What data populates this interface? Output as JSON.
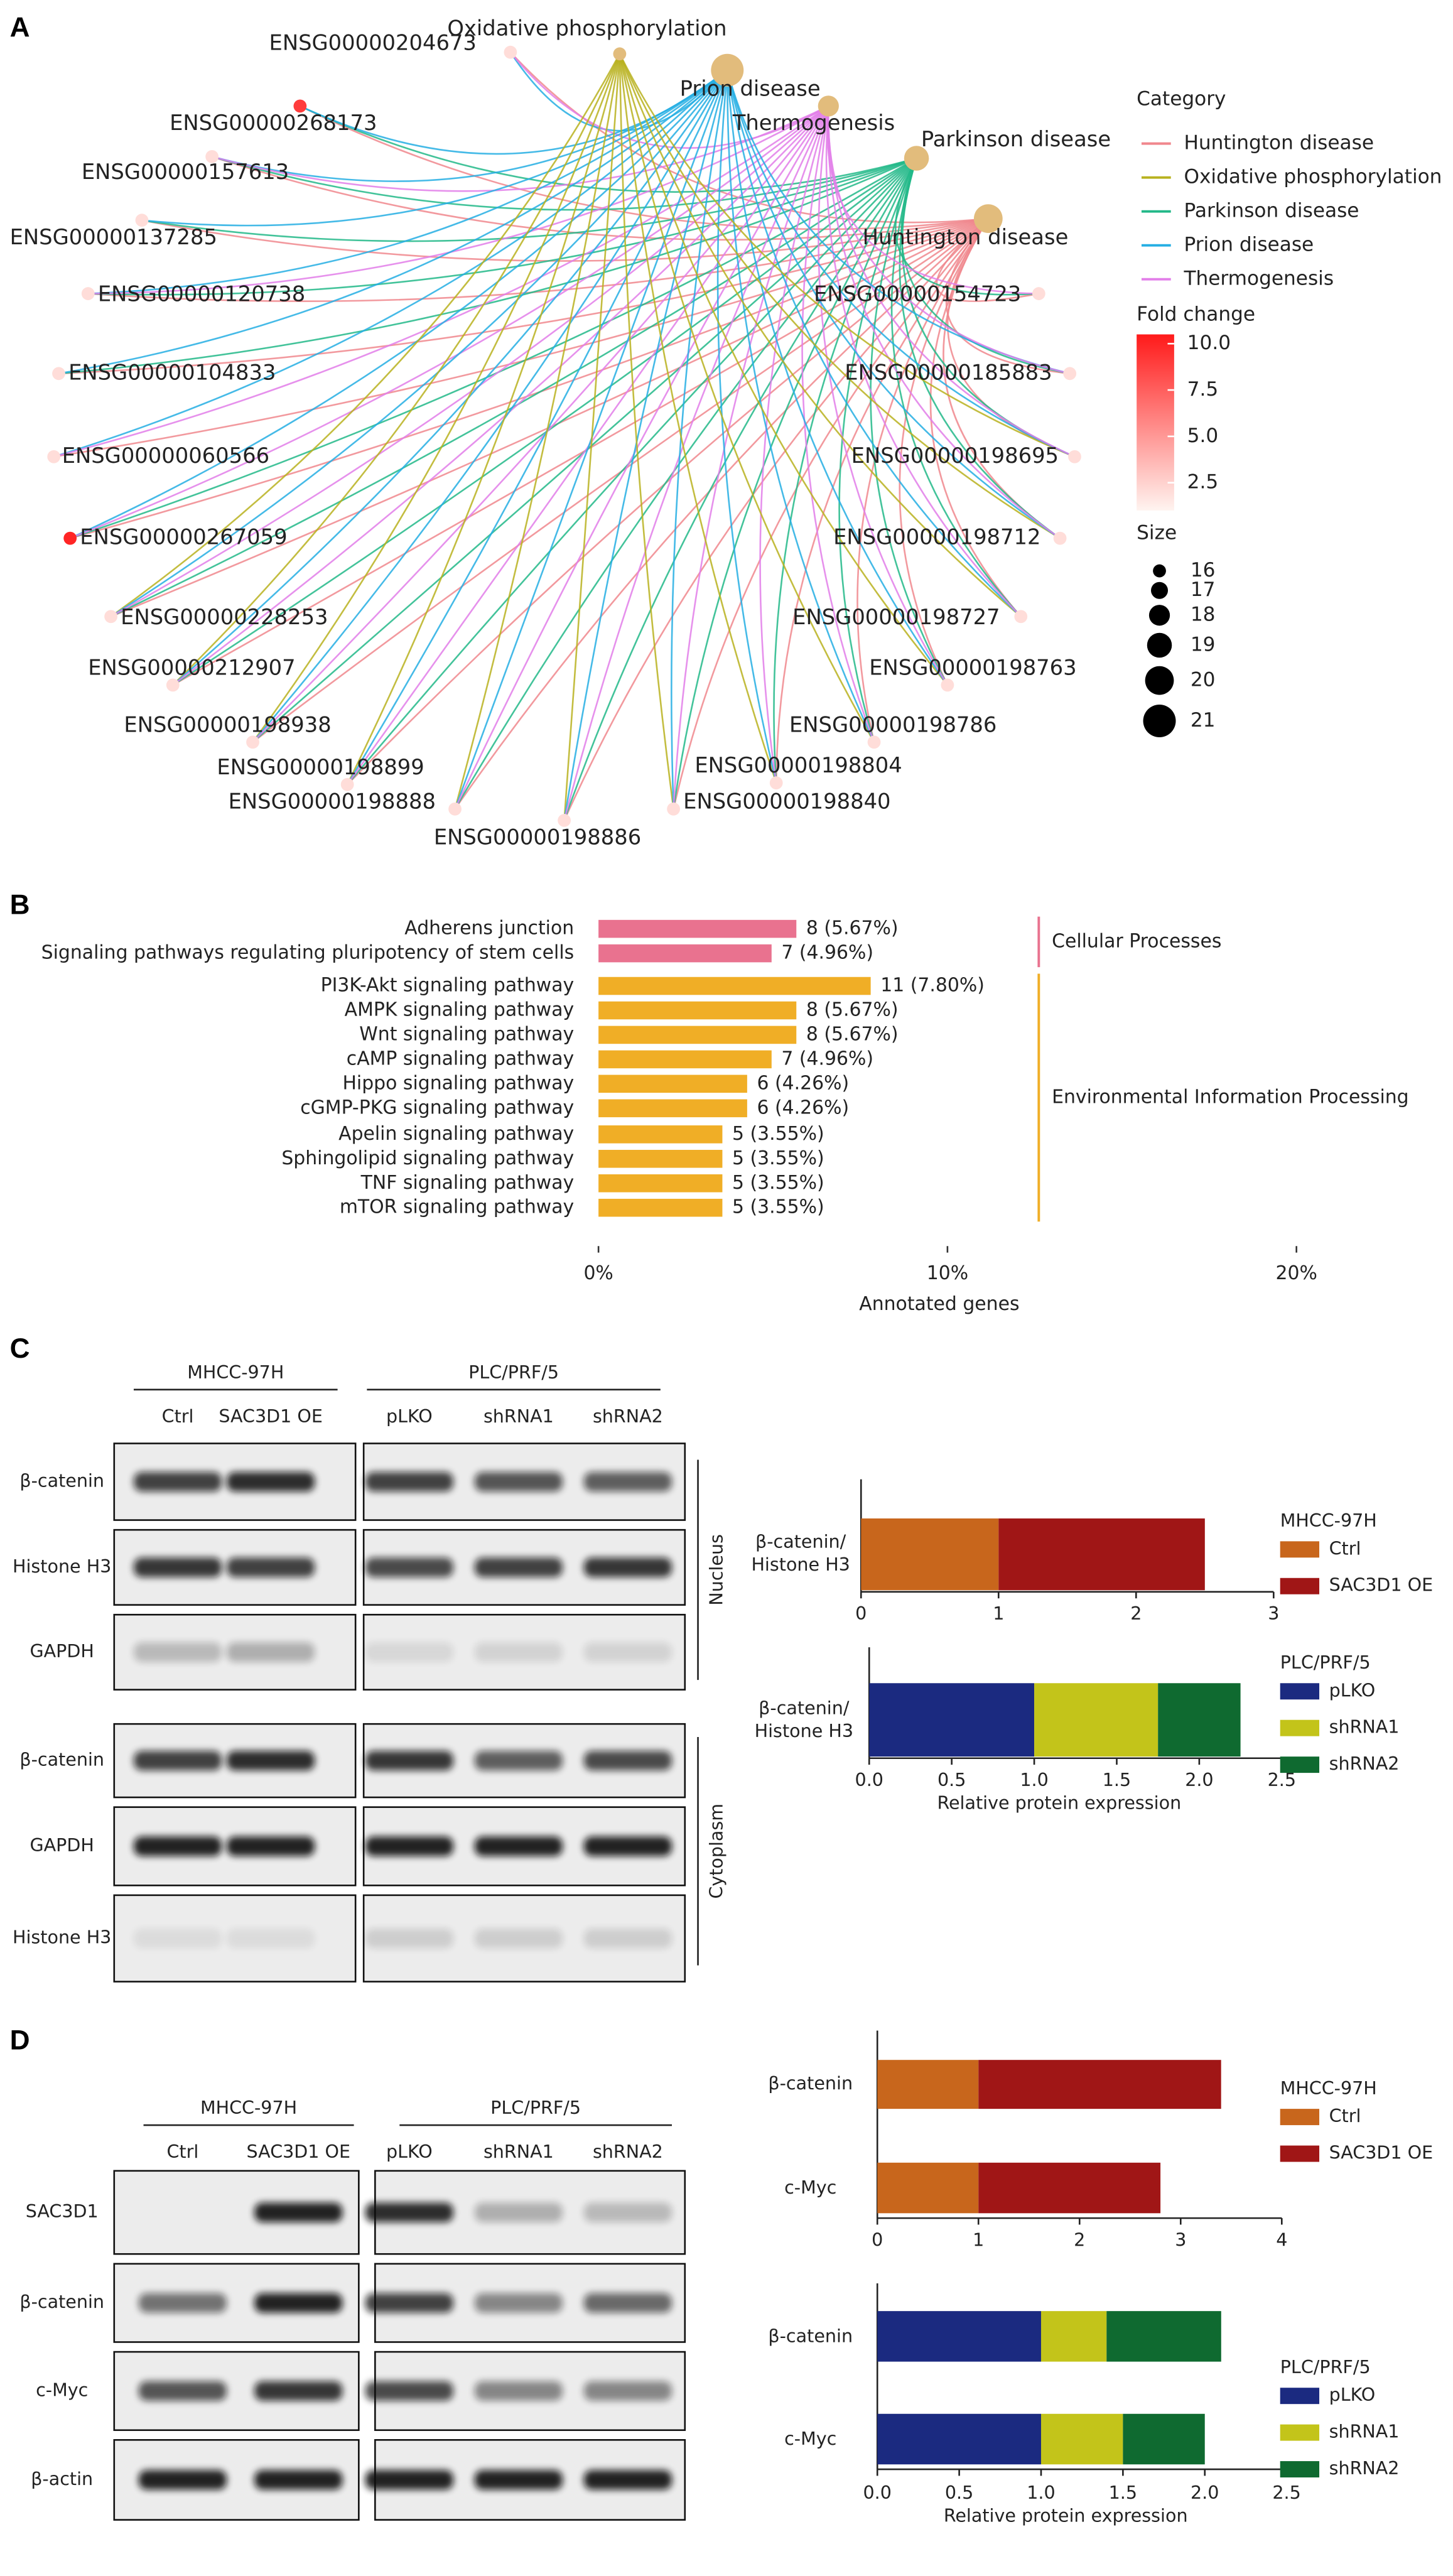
{
  "panel_labels": [
    "A",
    "B",
    "C",
    "D"
  ],
  "chart_data": [
    {
      "type": "network",
      "legend_titles": {
        "category": "Category",
        "color": "Fold change",
        "size": "Size"
      },
      "categories": [
        {
          "name": "Huntington disease",
          "color": "#f0878d",
          "size": 20
        },
        {
          "name": "Oxidative phosphorylation",
          "color": "#b8b21e",
          "size": 16
        },
        {
          "name": "Parkinson disease",
          "color": "#22b888",
          "size": 19
        },
        {
          "name": "Prion disease",
          "color": "#25aee3",
          "size": 21
        },
        {
          "name": "Thermogenesis",
          "color": "#e27ee9",
          "size": 18
        }
      ],
      "genes": [
        {
          "name": "ENSG00000204673",
          "fold_change": 2,
          "categories": [
            0,
            3,
            4
          ]
        },
        {
          "name": "ENSG00000268173",
          "fold_change": 9,
          "categories": [
            0,
            2,
            3
          ]
        },
        {
          "name": "ENSG00000157613",
          "fold_change": 2,
          "categories": [
            0,
            2,
            3,
            4
          ]
        },
        {
          "name": "ENSG00000137285",
          "fold_change": 2,
          "categories": [
            0,
            2,
            3
          ]
        },
        {
          "name": "ENSG00000120738",
          "fold_change": 2,
          "categories": [
            0,
            2,
            3,
            4
          ]
        },
        {
          "name": "ENSG00000104833",
          "fold_change": 2,
          "categories": [
            0,
            2,
            3
          ]
        },
        {
          "name": "ENSG00000060566",
          "fold_change": 2,
          "categories": [
            0,
            3,
            4
          ]
        },
        {
          "name": "ENSG00000267059",
          "fold_change": 10,
          "categories": [
            0,
            2,
            3,
            4
          ]
        },
        {
          "name": "ENSG00000228253",
          "fold_change": 2,
          "categories": [
            0,
            1,
            2,
            3,
            4
          ]
        },
        {
          "name": "ENSG00000212907",
          "fold_change": 2,
          "categories": [
            0,
            1,
            2,
            3,
            4
          ]
        },
        {
          "name": "ENSG00000198938",
          "fold_change": 2,
          "categories": [
            0,
            1,
            2,
            3,
            4
          ]
        },
        {
          "name": "ENSG00000198899",
          "fold_change": 2,
          "categories": [
            0,
            1,
            2,
            3,
            4
          ]
        },
        {
          "name": "ENSG00000198888",
          "fold_change": 2,
          "categories": [
            0,
            1,
            2,
            3,
            4
          ]
        },
        {
          "name": "ENSG00000198886",
          "fold_change": 2,
          "categories": [
            0,
            1,
            2,
            3,
            4
          ]
        },
        {
          "name": "ENSG00000198840",
          "fold_change": 2,
          "categories": [
            0,
            1,
            2,
            3,
            4
          ]
        },
        {
          "name": "ENSG00000198804",
          "fold_change": 2,
          "categories": [
            0,
            1,
            2,
            3,
            4
          ]
        },
        {
          "name": "ENSG00000198786",
          "fold_change": 2,
          "categories": [
            0,
            1,
            2,
            3,
            4
          ]
        },
        {
          "name": "ENSG00000198763",
          "fold_change": 2,
          "categories": [
            0,
            1,
            2,
            3,
            4
          ]
        },
        {
          "name": "ENSG00000198727",
          "fold_change": 2,
          "categories": [
            0,
            1,
            2,
            3,
            4
          ]
        },
        {
          "name": "ENSG00000198712",
          "fold_change": 2,
          "categories": [
            0,
            1,
            2,
            3,
            4
          ]
        },
        {
          "name": "ENSG00000198695",
          "fold_change": 2,
          "categories": [
            0,
            1,
            2,
            3,
            4
          ]
        },
        {
          "name": "ENSG00000185883",
          "fold_change": 2,
          "categories": [
            0,
            2,
            3,
            4
          ]
        },
        {
          "name": "ENSG00000154723",
          "fold_change": 2,
          "categories": [
            0,
            2,
            4
          ]
        }
      ],
      "clim": [
        1,
        10.5
      ],
      "cticks": [
        {
          "value": 10,
          "label": "10.0"
        },
        7.5,
        {
          "value": 5,
          "label": "5.0"
        },
        2.5
      ],
      "size_ticks": [
        16,
        17,
        18,
        19,
        20,
        21
      ]
    },
    {
      "type": "bar",
      "orientation": "horizontal",
      "categories": [
        "Adherens junction",
        "Signaling pathways regulating pluripotency of stem cells",
        "PI3K-Akt signaling pathway",
        "AMPK signaling pathway",
        "Wnt signaling pathway",
        "cAMP signaling pathway",
        "Hippo signaling pathway",
        "cGMP-PKG signaling pathway",
        "Apelin signaling pathway",
        "Sphingolipid signaling pathway",
        "TNF signaling pathway",
        "mTOR signaling pathway"
      ],
      "values": [
        5.67,
        4.96,
        7.8,
        5.67,
        5.67,
        4.96,
        4.26,
        4.26,
        3.55,
        3.55,
        3.55,
        3.55
      ],
      "value_labels": [
        "8 (5.67%)",
        "7 (4.96%)",
        "11 (7.80%)",
        "8 (5.67%)",
        "8 (5.67%)",
        "7 (4.96%)",
        "6 (4.26%)",
        "6 (4.26%)",
        "5 (3.55%)",
        "5 (3.55%)",
        "5 (3.55%)",
        "5 (3.55%)"
      ],
      "colors": [
        "#e9728f",
        "#e9728f",
        "#f0ae26",
        "#f0ae26",
        "#f0ae26",
        "#f0ae26",
        "#f0ae26",
        "#f0ae26",
        "#f0ae26",
        "#f0ae26",
        "#f0ae26",
        "#f0ae26"
      ],
      "groups": [
        {
          "name": "Cellular Processes",
          "color": "#e9728f",
          "size": 2
        },
        {
          "name": "Environmental Information Processing",
          "color": "#f0ae26",
          "size": 10
        }
      ],
      "xlim": [
        0,
        20
      ],
      "xticks": [
        {
          "value": 0,
          "label": "0%"
        },
        {
          "value": 10,
          "label": "10%"
        },
        {
          "value": 20,
          "label": "20%"
        }
      ],
      "xlabel": "Annotated genes"
    },
    {
      "type": "stacked_bar",
      "orientation": "horizontal",
      "legend_title": "MHCC-97H",
      "categories": [
        "β-catenin/ Histone H3"
      ],
      "series": [
        {
          "name": "Ctrl",
          "color": "#c8661c",
          "values": [
            1
          ]
        },
        {
          "name": "SAC3D1 OE",
          "color": "#a01616",
          "values": [
            1.5
          ]
        }
      ],
      "xlim": [
        0,
        3
      ],
      "xticks": [
        0,
        1,
        2,
        3
      ]
    },
    {
      "type": "stacked_bar",
      "orientation": "horizontal",
      "legend_title": "PLC/PRF/5",
      "categories": [
        "β-catenin/ Histone H3"
      ],
      "series": [
        {
          "name": "pLKO",
          "color": "#1b2a80",
          "values": [
            1
          ]
        },
        {
          "name": "shRNA1",
          "color": "#c3c41a",
          "values": [
            0.75
          ]
        },
        {
          "name": "shRNA2",
          "color": "#0f6a30",
          "values": [
            0.5
          ]
        }
      ],
      "xlim": [
        0,
        2.5
      ],
      "xticks": [
        {
          "value": 0,
          "label": "0.0"
        },
        0.5,
        {
          "value": 1,
          "label": "1.0"
        },
        1.5,
        {
          "value": 2,
          "label": "2.0"
        },
        2.5
      ],
      "xlabel": "Relative protein expression"
    },
    {
      "type": "stacked_bar",
      "orientation": "horizontal",
      "legend_title": "MHCC-97H",
      "categories": [
        "β-catenin",
        "c-Myc"
      ],
      "series": [
        {
          "name": "Ctrl",
          "color": "#c8661c",
          "values": [
            1,
            1
          ]
        },
        {
          "name": "SAC3D1 OE",
          "color": "#a01616",
          "values": [
            2.4,
            1.8
          ]
        }
      ],
      "xlim": [
        0,
        4
      ],
      "xticks": [
        0,
        1,
        2,
        3,
        4
      ]
    },
    {
      "type": "stacked_bar",
      "orientation": "horizontal",
      "legend_title": "PLC/PRF/5",
      "categories": [
        "β-catenin",
        "c-Myc"
      ],
      "series": [
        {
          "name": "pLKO",
          "color": "#1b2a80",
          "values": [
            1,
            1
          ]
        },
        {
          "name": "shRNA1",
          "color": "#c3c41a",
          "values": [
            0.4,
            0.5
          ]
        },
        {
          "name": "shRNA2",
          "color": "#0f6a30",
          "values": [
            0.7,
            0.5
          ]
        }
      ],
      "xlim": [
        0,
        2.5
      ],
      "xticks": [
        {
          "value": 0,
          "label": "0.0"
        },
        0.5,
        {
          "value": 1,
          "label": "1.0"
        },
        1.5,
        {
          "value": 2,
          "label": "2.0"
        },
        2.5
      ],
      "xlabel": "Relative protein expression"
    }
  ],
  "blots": [
    {
      "groups": [
        {
          "name": "MHCC-97H",
          "lanes": [
            "Ctrl",
            "SAC3D1 OE"
          ]
        },
        {
          "name": "PLC/PRF/5",
          "lanes": [
            "pLKO",
            "shRNA1",
            "shRNA2"
          ]
        }
      ],
      "sections": [
        {
          "name": "Nucleus",
          "rows": [
            "β-catenin",
            "Histone H3",
            "GAPDH"
          ]
        },
        {
          "name": "Cytoplasm",
          "rows": [
            "β-catenin",
            "GAPDH",
            "Histone H3"
          ]
        }
      ]
    },
    {
      "groups": [
        {
          "name": "MHCC-97H",
          "lanes": [
            "Ctrl",
            "SAC3D1 OE"
          ]
        },
        {
          "name": "PLC/PRF/5",
          "lanes": [
            "pLKO",
            "shRNA1",
            "shRNA2"
          ]
        }
      ],
      "sections": [
        {
          "rows": [
            "SAC3D1",
            "β-catenin",
            "c-Myc",
            "β-actin"
          ]
        }
      ]
    }
  ]
}
